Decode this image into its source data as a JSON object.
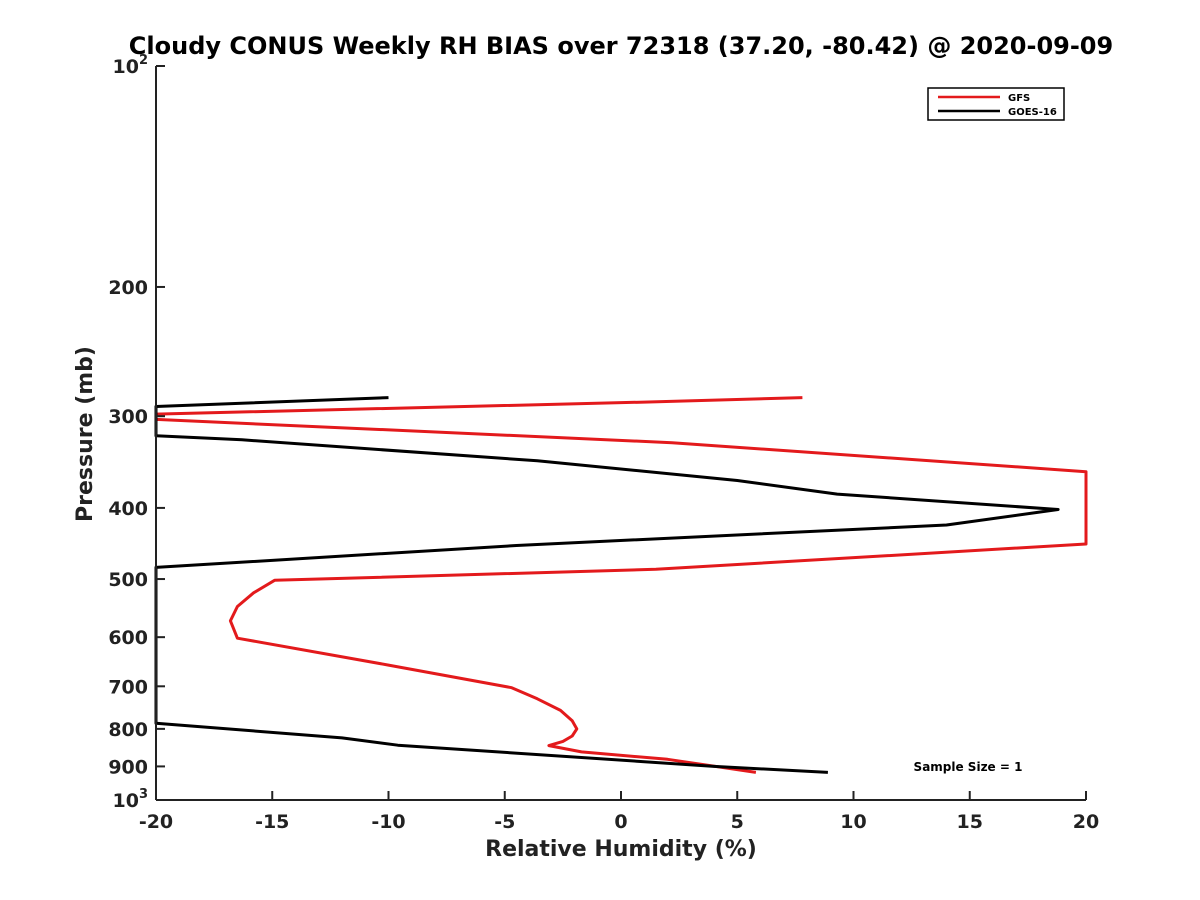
{
  "chart_data": {
    "type": "line",
    "title": "Cloudy CONUS Weekly RH BIAS over 72318 (37.20, -80.42) @ 2020-09-09",
    "xlabel": "Relative Humidity (%)",
    "ylabel": "Pressure (mb)",
    "xlim": [
      -20,
      20
    ],
    "ylim": [
      100,
      1000
    ],
    "yscale": "log",
    "yreversed": true,
    "grid": false,
    "legend_position": "top-right",
    "x_ticks": [
      "-20",
      "-15",
      "-10",
      "-5",
      "0",
      "5",
      "10",
      "15",
      "20"
    ],
    "y_ticks": [
      {
        "value": 100,
        "base": "10",
        "exp": "2"
      },
      {
        "value": 200,
        "label": "200"
      },
      {
        "value": 300,
        "label": "300"
      },
      {
        "value": 400,
        "label": "400"
      },
      {
        "value": 500,
        "label": "500"
      },
      {
        "value": 600,
        "label": "600"
      },
      {
        "value": 700,
        "label": "700"
      },
      {
        "value": 800,
        "label": "800"
      },
      {
        "value": 900,
        "label": "900"
      },
      {
        "value": 1000,
        "base": "10",
        "exp": "3"
      }
    ],
    "series": [
      {
        "name": "GFS",
        "color": "#e31a1c",
        "x": [
          7.8,
          1.0,
          -20.0,
          -20.0,
          2.2,
          20.0,
          20.0,
          1.5,
          -14.9,
          -15.8,
          -16.5,
          -16.8,
          -16.5,
          -10.0,
          -4.7,
          -3.6,
          -2.6,
          -2.1,
          -1.9,
          -2.1,
          -2.5,
          -3.1,
          -1.7,
          2.0,
          5.8
        ],
        "y": [
          283,
          287,
          298,
          303,
          326,
          357,
          448,
          485,
          502,
          522,
          545,
          570,
          602,
          655,
          703,
          728,
          755,
          780,
          800,
          818,
          832,
          843,
          860,
          880,
          917
        ]
      },
      {
        "name": "GOES-16",
        "color": "#000000",
        "x": [
          -10.0,
          -20.0,
          -20.0,
          -16.3,
          -3.6,
          5.0,
          9.3,
          18.8,
          14.0,
          -4.5,
          -20.0,
          -20.0,
          -12.0,
          -9.6,
          4.0,
          8.9
        ],
        "y": [
          283,
          291,
          319,
          323,
          345,
          367,
          383,
          402,
          422,
          450,
          482,
          786,
          823,
          842,
          900,
          917
        ]
      }
    ],
    "annotations": [
      "Sample Size = 1"
    ]
  }
}
